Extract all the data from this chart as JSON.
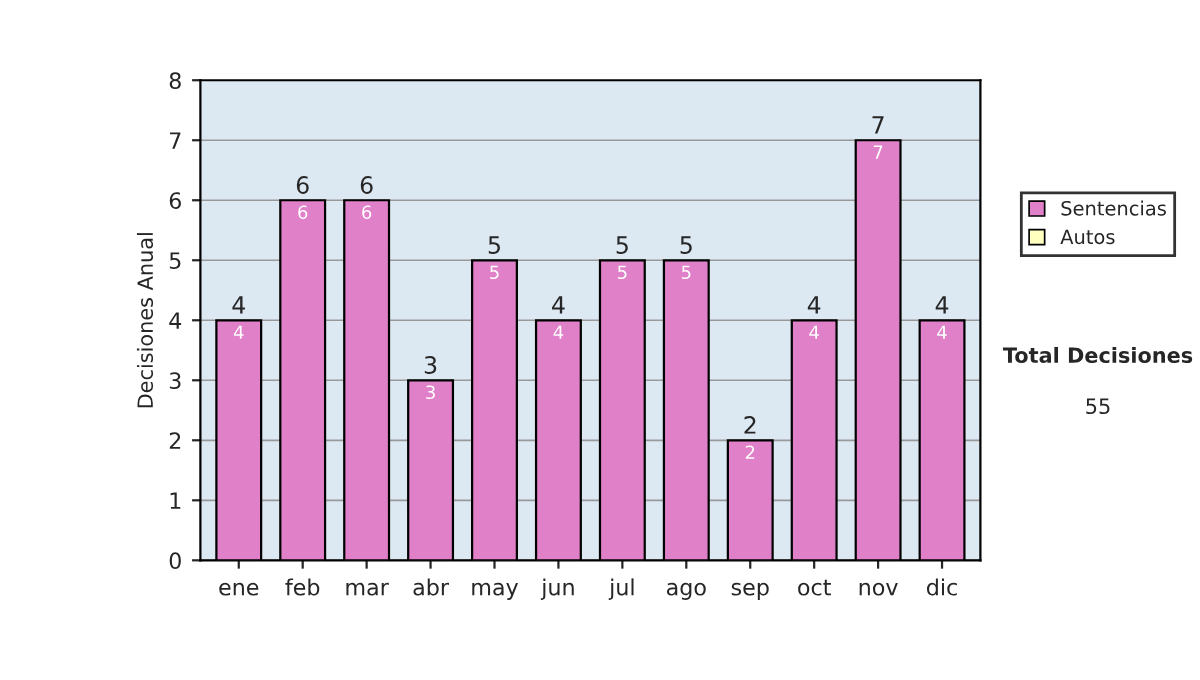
{
  "chart_data": {
    "type": "bar",
    "stacked": true,
    "ylabel": "Decisiones Anual",
    "categories": [
      "ene",
      "feb",
      "mar",
      "abr",
      "may",
      "jun",
      "jul",
      "ago",
      "sep",
      "oct",
      "nov",
      "dic"
    ],
    "series": [
      {
        "name": "Sentencias",
        "color": "#e080c8",
        "values": [
          4,
          6,
          6,
          3,
          5,
          4,
          5,
          5,
          2,
          4,
          7,
          4
        ]
      },
      {
        "name": "Autos",
        "color": "#ffffc0",
        "values": [
          null,
          null,
          null,
          null,
          null,
          null,
          null,
          null,
          null,
          null,
          null,
          null
        ]
      }
    ],
    "totals": [
      "4",
      "6",
      "6",
      "3",
      "5",
      "4",
      "5",
      "5",
      "2",
      "4",
      "7",
      "4"
    ],
    "data_labels": true,
    "ylim": [
      0,
      8
    ],
    "yticks": [
      0,
      1,
      2,
      3,
      4,
      5,
      6,
      7,
      8
    ],
    "grid": "y",
    "legend": "right",
    "annotations": [
      "Total Decisiones",
      "55"
    ]
  }
}
